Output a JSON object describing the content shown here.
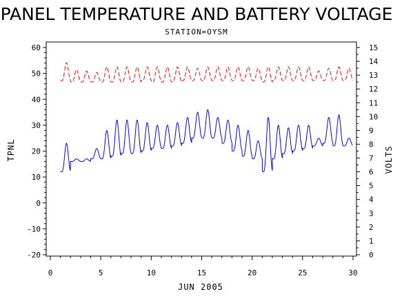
{
  "chart_data": {
    "type": "line",
    "title": "PANEL TEMPERATURE AND BATTERY VOLTAGE",
    "subtitle": "STATION=OYSM",
    "xlabel": "JUN 2005",
    "ylabel_left": "TPNL",
    "ylabel_right": "VOLTS",
    "xlim": [
      0,
      30
    ],
    "ylim_left": [
      -20,
      60
    ],
    "ylim_right": [
      0,
      15
    ],
    "x_ticks": [
      0,
      5,
      10,
      15,
      20,
      25,
      30
    ],
    "y_left_ticks": [
      -20,
      -10,
      0,
      10,
      20,
      30,
      40,
      50,
      60
    ],
    "y_right_ticks": [
      0,
      1,
      2,
      3,
      4,
      5,
      6,
      7,
      8,
      9,
      10,
      11,
      12,
      13,
      14,
      15
    ],
    "grid": false,
    "series": [
      {
        "axis": "left",
        "color": "#0000ff",
        "style": "solid",
        "daily_min": [
          12,
          16,
          16,
          17,
          17,
          18,
          19,
          19,
          20,
          21,
          21,
          22,
          23,
          25,
          25,
          25,
          23,
          20,
          18,
          17,
          12,
          17,
          19,
          20,
          21,
          22,
          23,
          22,
          22,
          22
        ],
        "daily_max": [
          23,
          17,
          17,
          21,
          28,
          32,
          32,
          32,
          31,
          30,
          30,
          31,
          33,
          35,
          36,
          33,
          32,
          30,
          28,
          24,
          33,
          30,
          29,
          30,
          30,
          25,
          33,
          34,
          25,
          24
        ],
        "x_range": [
          1.0,
          29.95
        ]
      },
      {
        "axis": "right",
        "color": "#ff0000",
        "style": "dashed",
        "daily_min": [
          12.6,
          12.5,
          12.5,
          12.5,
          12.5,
          12.5,
          12.5,
          12.5,
          12.6,
          12.5,
          12.5,
          12.5,
          12.6,
          12.6,
          12.6,
          12.6,
          12.6,
          12.6,
          12.6,
          12.6,
          12.5,
          12.6,
          12.6,
          12.6,
          12.6,
          12.6,
          12.6,
          12.6,
          12.6,
          12.5
        ],
        "daily_max": [
          13.9,
          13.4,
          13.3,
          13.2,
          13.6,
          13.6,
          13.6,
          13.6,
          13.6,
          13.6,
          13.6,
          13.6,
          13.6,
          13.5,
          13.6,
          13.6,
          13.6,
          13.6,
          13.6,
          13.5,
          13.6,
          13.6,
          13.6,
          13.6,
          13.6,
          13.3,
          13.5,
          13.6,
          13.5,
          13.4
        ],
        "x_range": [
          1.0,
          30.0
        ]
      }
    ]
  }
}
